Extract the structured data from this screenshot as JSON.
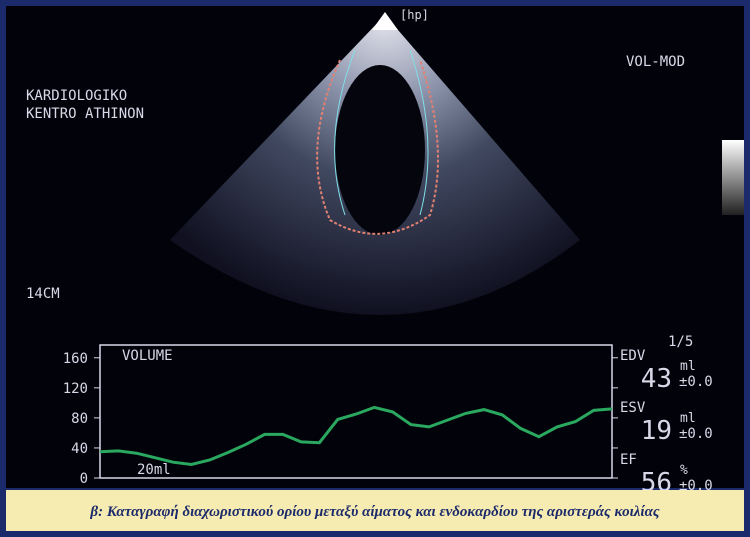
{
  "probe": "[hp]",
  "mode": "VOL-MOD",
  "site": [
    "KARDIOLOGIKO",
    "KENTRO ATHINON"
  ],
  "depth": "14CM",
  "scale_label": "20ml",
  "frame": "1/5",
  "measurements": [
    {
      "name": "EDV",
      "unit": "ml",
      "value": 43,
      "error": "±0.0"
    },
    {
      "name": "ESV",
      "unit": "ml",
      "value": 19,
      "error": "±0.0"
    },
    {
      "name": "EF",
      "unit": "%",
      "value": 56,
      "error": "±0.0"
    }
  ],
  "caption": "β: Καταγραφή διαχωριστικού ορίου μεταξύ αίματος και ενδοκαρδίου της αριστεράς κοιλίας",
  "chart_data": {
    "type": "line",
    "title": "VOLUME",
    "series": [
      {
        "color": "#2aa860",
        "values": [
          35,
          36,
          33,
          27,
          21,
          18,
          24,
          34,
          45,
          58,
          58,
          48,
          47,
          78,
          85,
          94,
          88,
          71,
          68,
          77,
          86,
          91,
          84,
          66,
          55,
          68,
          75,
          90,
          92
        ]
      }
    ],
    "ylim": [
      0,
      177
    ],
    "yticks": [
      0,
      40,
      80,
      120,
      160
    ]
  }
}
